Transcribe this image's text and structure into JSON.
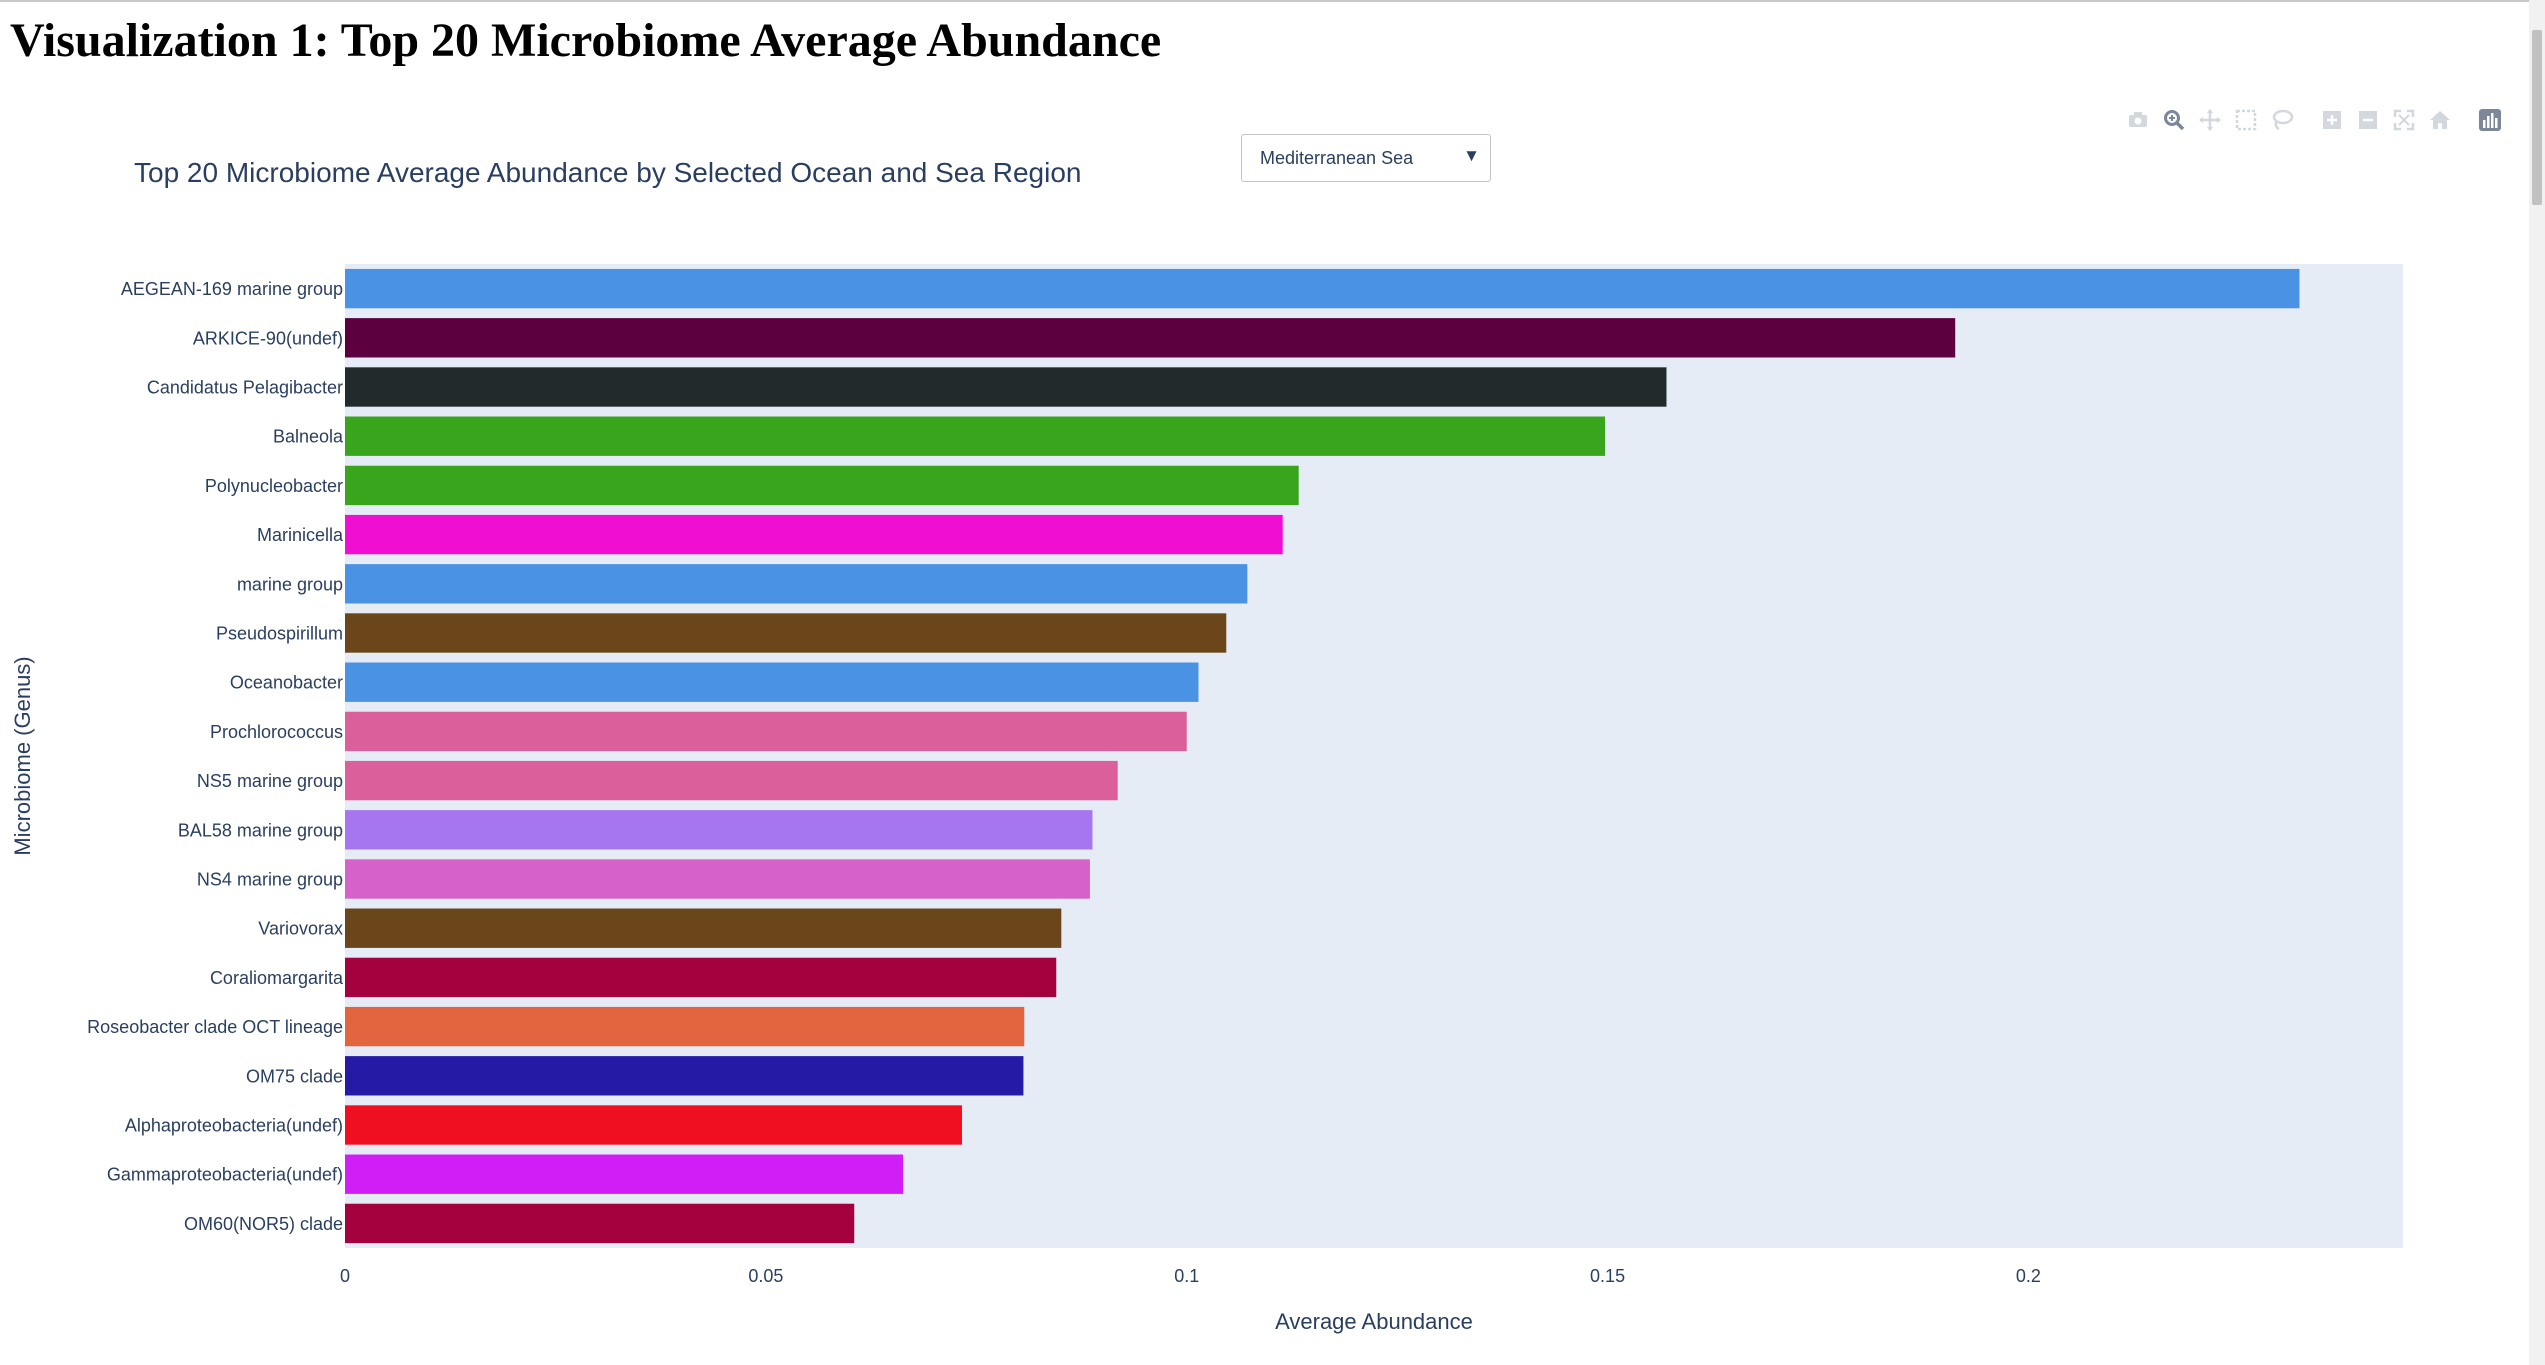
{
  "page": {
    "heading": "Visualization 1: Top 20 Microbiome Average Abundance"
  },
  "dropdown": {
    "selected": "Mediterranean Sea",
    "arrow": "▼"
  },
  "modebar": {
    "icons": [
      "camera-icon",
      "zoom-icon",
      "pan-icon",
      "box-select-icon",
      "lasso-icon",
      "zoom-in-icon",
      "zoom-out-icon",
      "autoscale-icon",
      "reset-axes-icon",
      "plotly-logo-icon"
    ]
  },
  "colors": {
    "plot_background": "#e5ecf6",
    "text": "#2a3f5f"
  },
  "chart_data": {
    "type": "bar",
    "orientation": "horizontal",
    "title": "Top 20 Microbiome Average Abundance by Selected Ocean and Sea Region",
    "xlabel": "Average Abundance",
    "ylabel": "Microbiome (Genus)",
    "xlim": [
      0,
      0.2445
    ],
    "grid": false,
    "x_ticks": [
      {
        "value": 0,
        "label": "0"
      },
      {
        "value": 0.05,
        "label": "0.05"
      },
      {
        "value": 0.1,
        "label": "0.1"
      },
      {
        "value": 0.15,
        "label": "0.15"
      },
      {
        "value": 0.2,
        "label": "0.2"
      }
    ],
    "categories": [
      "AEGEAN-169 marine group",
      "ARKICE-90(undef)",
      "Candidatus Pelagibacter",
      "Balneola",
      "Polynucleobacter",
      "Marinicella",
      "marine group",
      "Pseudospirillum",
      "Oceanobacter",
      "Prochlorococcus",
      "NS5 marine group",
      "BAL58 marine group",
      "NS4 marine group",
      "Variovorax",
      "Coraliomargarita",
      "Roseobacter clade OCT lineage",
      "OM75 clade",
      "Alphaproteobacteria(undef)",
      "Gammaproteobacteria(undef)",
      "OM60(NOR5) clade"
    ],
    "values": [
      0.2322,
      0.1913,
      0.157,
      0.1497,
      0.1133,
      0.1114,
      0.1072,
      0.1047,
      0.1014,
      0.1,
      0.0918,
      0.0888,
      0.0885,
      0.0851,
      0.0845,
      0.0807,
      0.0806,
      0.0733,
      0.0663,
      0.0605
    ],
    "bar_colors": [
      "#4a93e4",
      "#5c0040",
      "#212b2b",
      "#38a51c",
      "#38a51c",
      "#f00ed3",
      "#4a93e4",
      "#6b461a",
      "#4a93e4",
      "#db5f9a",
      "#db5f9a",
      "#a676f0",
      "#d561cb",
      "#6b461a",
      "#a3023e",
      "#e2653f",
      "#241aa6",
      "#f00e21",
      "#d21ef6",
      "#a3023e"
    ]
  }
}
